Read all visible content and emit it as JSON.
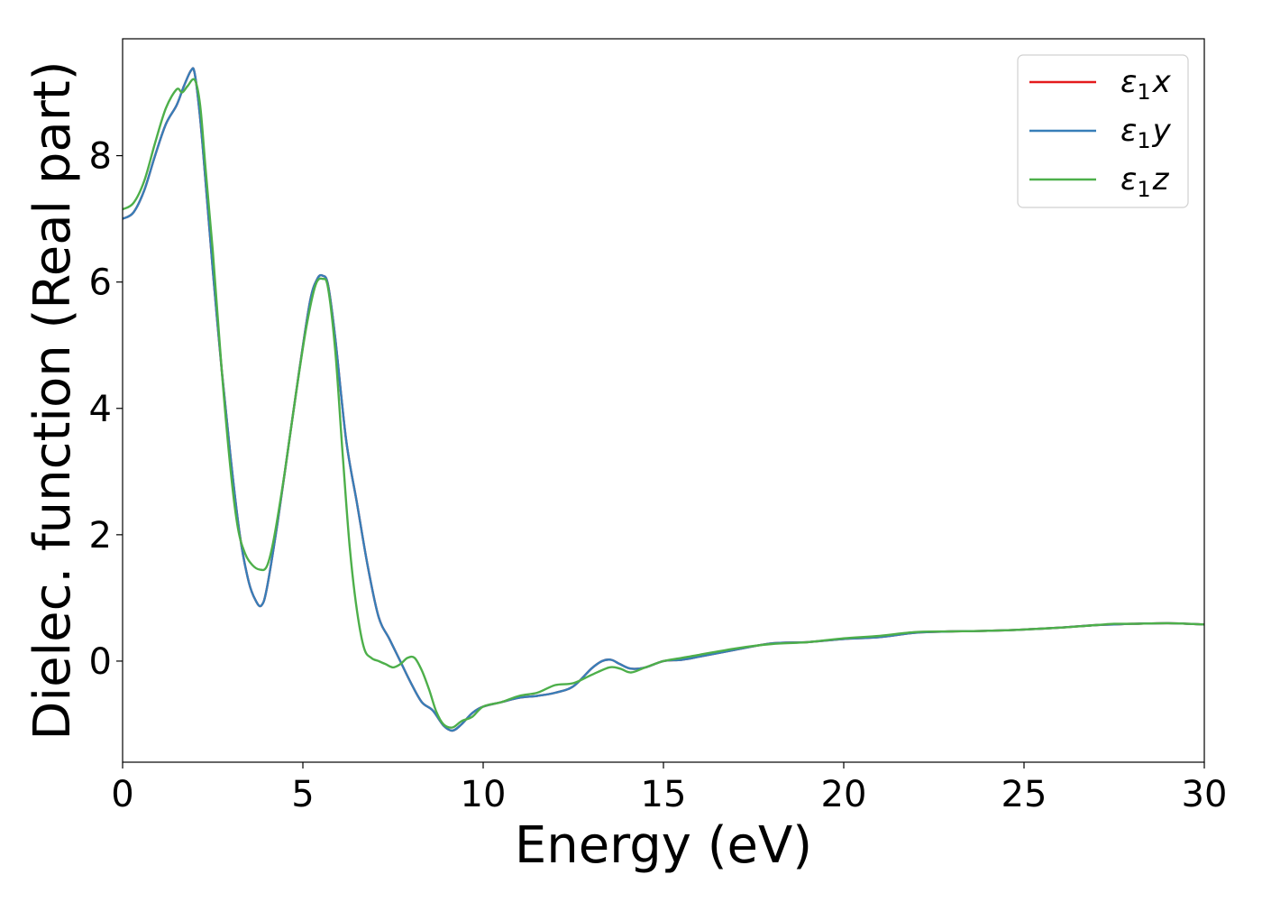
{
  "chart_data": {
    "type": "line",
    "title": "",
    "xlabel": "Energy (eV)",
    "ylabel": "Dielec. function (Real part)",
    "xlim": [
      0,
      30
    ],
    "ylim": [
      -1.6,
      9.85
    ],
    "xticks": [
      0,
      5,
      10,
      15,
      20,
      25,
      30
    ],
    "yticks": [
      0,
      2,
      4,
      6,
      8
    ],
    "grid": false,
    "legend_position": "top-right",
    "series": [
      {
        "name": "ε₁x",
        "legend_base": "ε",
        "legend_sub": "1",
        "legend_var": "x",
        "color": "#e41a1c",
        "x": [
          0,
          0.3,
          0.6,
          0.9,
          1.2,
          1.5,
          1.7,
          1.9,
          2.0,
          2.15,
          2.3,
          2.5,
          2.75,
          3.0,
          3.25,
          3.5,
          3.7,
          3.85,
          4.0,
          4.3,
          4.6,
          4.9,
          5.2,
          5.4,
          5.55,
          5.7,
          5.9,
          6.2,
          6.5,
          6.8,
          7.1,
          7.4,
          7.7,
          8.0,
          8.3,
          8.6,
          8.9,
          9.15,
          9.4,
          9.7,
          10.0,
          10.5,
          11.0,
          11.5,
          12.0,
          12.5,
          13.0,
          13.3,
          13.55,
          13.8,
          14.1,
          14.5,
          15.0,
          15.5,
          16.0,
          17.0,
          18.0,
          19.0,
          20.0,
          21.0,
          22.0,
          23.0,
          24.0,
          25.0,
          26.0,
          27.0,
          27.5,
          28.0,
          29.0,
          30.0
        ],
        "values": [
          7.0,
          7.1,
          7.45,
          8.0,
          8.5,
          8.8,
          9.1,
          9.35,
          9.3,
          8.6,
          7.6,
          6.2,
          4.6,
          3.2,
          2.0,
          1.25,
          0.95,
          0.88,
          1.15,
          2.2,
          3.4,
          4.6,
          5.7,
          6.05,
          6.1,
          5.95,
          5.1,
          3.5,
          2.5,
          1.5,
          0.7,
          0.35,
          0.0,
          -0.35,
          -0.65,
          -0.78,
          -1.02,
          -1.1,
          -1.0,
          -0.82,
          -0.72,
          -0.65,
          -0.58,
          -0.55,
          -0.5,
          -0.4,
          -0.12,
          0.0,
          0.02,
          -0.05,
          -0.12,
          -0.1,
          0.0,
          0.02,
          0.07,
          0.18,
          0.28,
          0.3,
          0.35,
          0.38,
          0.45,
          0.47,
          0.48,
          0.5,
          0.53,
          0.57,
          0.58,
          0.59,
          0.6,
          0.58
        ]
      },
      {
        "name": "ε₁y",
        "legend_base": "ε",
        "legend_sub": "1",
        "legend_var": "y",
        "color": "#377eb8",
        "x": [
          0,
          0.3,
          0.6,
          0.9,
          1.2,
          1.5,
          1.7,
          1.9,
          2.0,
          2.15,
          2.3,
          2.5,
          2.75,
          3.0,
          3.25,
          3.5,
          3.7,
          3.85,
          4.0,
          4.3,
          4.6,
          4.9,
          5.2,
          5.4,
          5.55,
          5.7,
          5.9,
          6.2,
          6.5,
          6.8,
          7.1,
          7.4,
          7.7,
          8.0,
          8.3,
          8.6,
          8.9,
          9.15,
          9.4,
          9.7,
          10.0,
          10.5,
          11.0,
          11.5,
          12.0,
          12.5,
          13.0,
          13.3,
          13.55,
          13.8,
          14.1,
          14.5,
          15.0,
          15.5,
          16.0,
          17.0,
          18.0,
          19.0,
          20.0,
          21.0,
          22.0,
          23.0,
          24.0,
          25.0,
          26.0,
          27.0,
          27.5,
          28.0,
          29.0,
          30.0
        ],
        "values": [
          7.0,
          7.1,
          7.45,
          8.0,
          8.5,
          8.8,
          9.1,
          9.35,
          9.3,
          8.6,
          7.6,
          6.2,
          4.6,
          3.2,
          2.0,
          1.25,
          0.95,
          0.88,
          1.15,
          2.2,
          3.4,
          4.6,
          5.7,
          6.05,
          6.1,
          5.95,
          5.1,
          3.5,
          2.5,
          1.5,
          0.7,
          0.35,
          0.0,
          -0.35,
          -0.65,
          -0.78,
          -1.02,
          -1.1,
          -1.0,
          -0.82,
          -0.72,
          -0.65,
          -0.58,
          -0.55,
          -0.5,
          -0.4,
          -0.12,
          0.0,
          0.02,
          -0.05,
          -0.12,
          -0.1,
          0.0,
          0.02,
          0.07,
          0.18,
          0.28,
          0.3,
          0.35,
          0.38,
          0.45,
          0.47,
          0.48,
          0.5,
          0.53,
          0.57,
          0.58,
          0.59,
          0.6,
          0.58
        ]
      },
      {
        "name": "ε₁z",
        "legend_base": "ε",
        "legend_sub": "1",
        "legend_var": "z",
        "color": "#4daf4a",
        "x": [
          0,
          0.3,
          0.6,
          0.9,
          1.2,
          1.5,
          1.65,
          1.8,
          2.0,
          2.15,
          2.3,
          2.5,
          2.75,
          3.0,
          3.2,
          3.4,
          3.6,
          3.8,
          4.0,
          4.2,
          4.5,
          4.8,
          5.1,
          5.35,
          5.55,
          5.7,
          5.9,
          6.1,
          6.3,
          6.5,
          6.7,
          6.9,
          7.1,
          7.3,
          7.5,
          7.7,
          7.9,
          8.1,
          8.3,
          8.5,
          8.7,
          8.9,
          9.15,
          9.4,
          9.7,
          10.0,
          10.5,
          11.0,
          11.5,
          12.0,
          12.5,
          13.0,
          13.5,
          13.8,
          14.1,
          14.5,
          15.0,
          15.5,
          16.0,
          17.0,
          18.0,
          19.0,
          20.0,
          21.0,
          22.0,
          23.0,
          24.0,
          25.0,
          26.0,
          27.0,
          27.5,
          28.0,
          29.0,
          30.0
        ],
        "values": [
          7.15,
          7.25,
          7.6,
          8.2,
          8.75,
          9.05,
          9.0,
          9.1,
          9.2,
          8.8,
          7.8,
          6.5,
          4.6,
          3.0,
          2.1,
          1.7,
          1.52,
          1.45,
          1.5,
          1.95,
          3.0,
          4.2,
          5.3,
          5.95,
          6.05,
          5.9,
          4.9,
          3.3,
          1.8,
          0.8,
          0.2,
          0.05,
          0.0,
          -0.05,
          -0.1,
          -0.05,
          0.05,
          0.05,
          -0.15,
          -0.45,
          -0.8,
          -1.0,
          -1.05,
          -0.95,
          -0.88,
          -0.72,
          -0.65,
          -0.55,
          -0.5,
          -0.38,
          -0.35,
          -0.22,
          -0.1,
          -0.12,
          -0.18,
          -0.1,
          0.0,
          0.05,
          0.1,
          0.2,
          0.27,
          0.3,
          0.36,
          0.4,
          0.46,
          0.47,
          0.48,
          0.5,
          0.53,
          0.57,
          0.59,
          0.59,
          0.6,
          0.58
        ]
      }
    ]
  }
}
